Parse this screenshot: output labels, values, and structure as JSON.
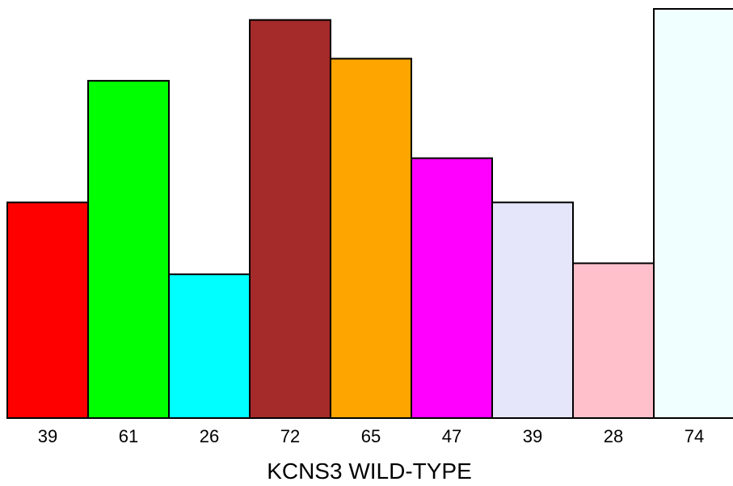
{
  "chart_data": {
    "type": "bar",
    "title": "",
    "xlabel": "KCNS3 WILD-TYPE",
    "ylabel": "",
    "categories": [
      "39",
      "61",
      "26",
      "72",
      "65",
      "47",
      "39",
      "28",
      "74"
    ],
    "values": [
      39,
      61,
      26,
      72,
      65,
      47,
      39,
      28,
      74
    ],
    "colors": [
      "#ff0000",
      "#00ff00",
      "#00ffff",
      "#a52a2a",
      "#ffa500",
      "#ff00ff",
      "#e6e6fa",
      "#ffc0cb",
      "#f0ffff"
    ],
    "ylim": [
      0,
      74
    ],
    "grid": false,
    "legend": "none"
  }
}
